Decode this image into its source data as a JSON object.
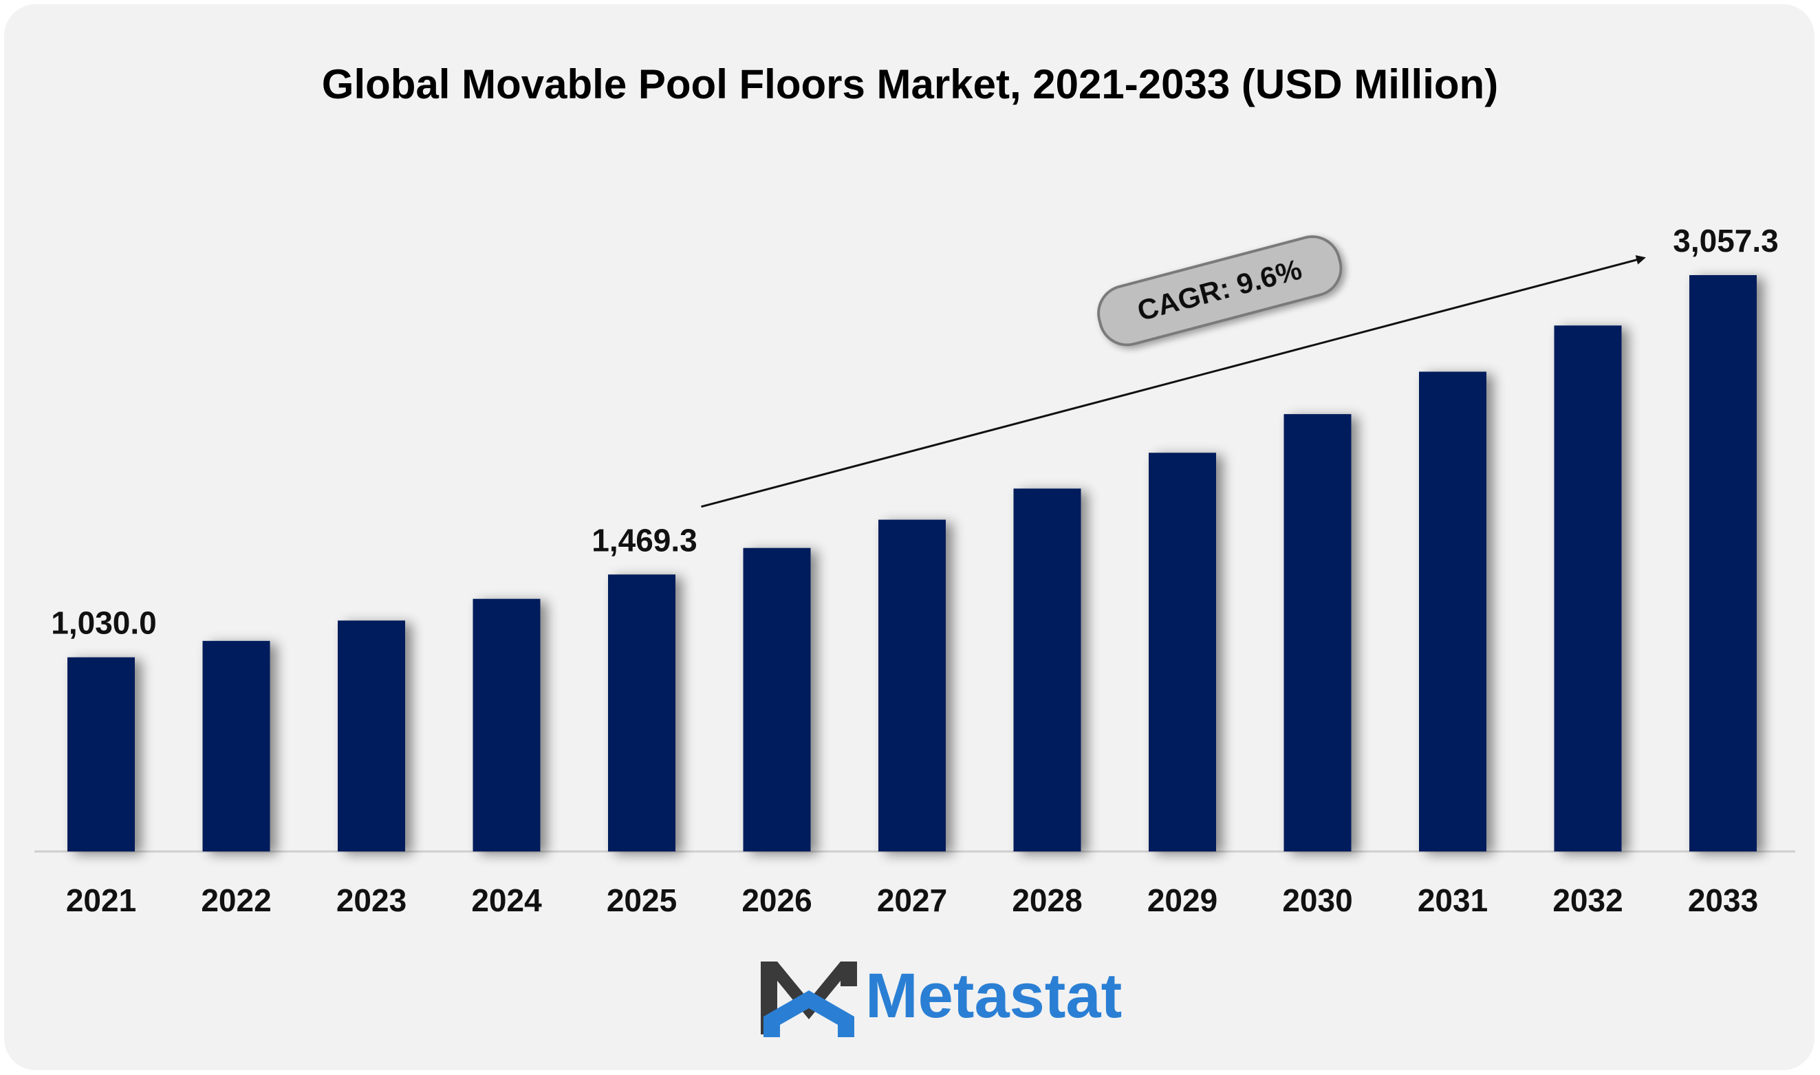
{
  "chart_data": {
    "type": "bar",
    "title": "Global Movable Pool Floors Market, 2021-2033 (USD Million)",
    "xlabel": "",
    "ylabel": "",
    "categories": [
      "2021",
      "2022",
      "2023",
      "2024",
      "2025",
      "2026",
      "2027",
      "2028",
      "2029",
      "2030",
      "2031",
      "2032",
      "2033"
    ],
    "values": [
      1030.0,
      1117,
      1225,
      1340,
      1469.3,
      1610,
      1760,
      1925,
      2115,
      2320,
      2545,
      2790,
      3057.3
    ],
    "data_labels": [
      {
        "index": 0,
        "text": "1,030.0"
      },
      {
        "index": 4,
        "text": "1,469.3"
      },
      {
        "index": 12,
        "text": "3,057.3"
      }
    ],
    "annotation": {
      "text": "CAGR: 9.6%",
      "from_index": 5,
      "to_index": 12
    },
    "ylim": [
      0,
      3057.3
    ],
    "grid": false,
    "legend": "none",
    "bar_color": "#001f5b"
  },
  "branding": {
    "logo_text": "Metastat",
    "logo_color": "#2a7fd4",
    "logo_icon": "metastat-m-logo-icon"
  }
}
